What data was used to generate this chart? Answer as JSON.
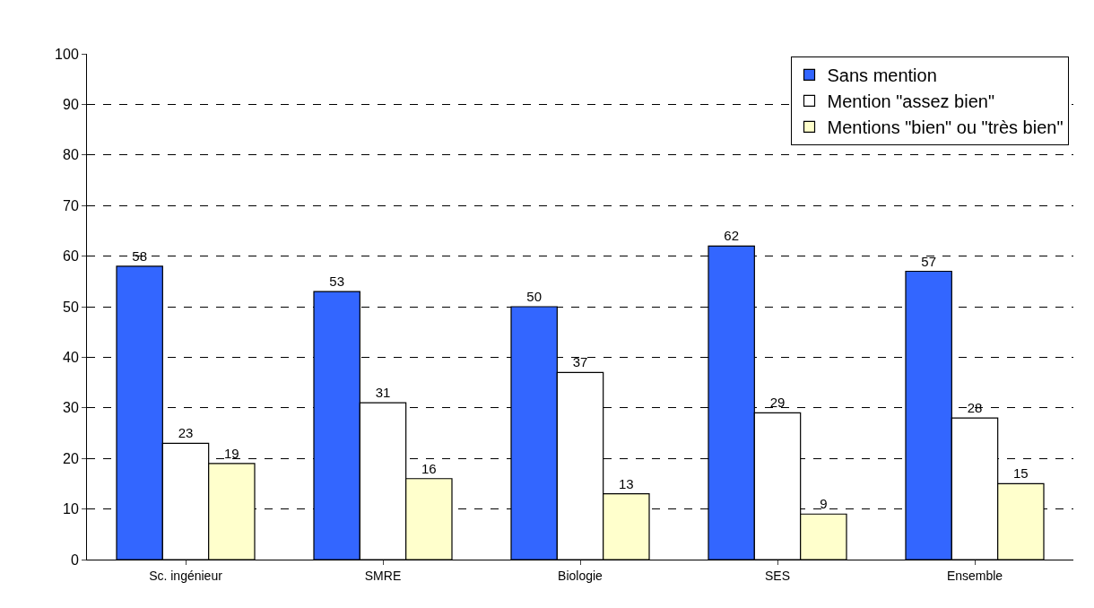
{
  "chart_data": {
    "type": "bar",
    "categories": [
      "Sc. ingénieur",
      "SMRE",
      "Biologie",
      "SES",
      "Ensemble"
    ],
    "series": [
      {
        "name": "Sans mention",
        "color": "#3366ff",
        "values": [
          58,
          53,
          50,
          62,
          57
        ]
      },
      {
        "name": "Mention \"assez bien\"",
        "color": "#ffffff",
        "values": [
          23,
          31,
          37,
          29,
          28
        ]
      },
      {
        "name": "Mentions \"bien\" ou \"très bien\"",
        "color": "#ffffcc",
        "values": [
          19,
          16,
          13,
          9,
          15
        ]
      }
    ],
    "ylim": [
      0,
      100
    ],
    "yticks": [
      0,
      10,
      20,
      30,
      40,
      50,
      60,
      70,
      80,
      90,
      100
    ],
    "grid": "y",
    "legend": "top right",
    "data_labels": true
  }
}
